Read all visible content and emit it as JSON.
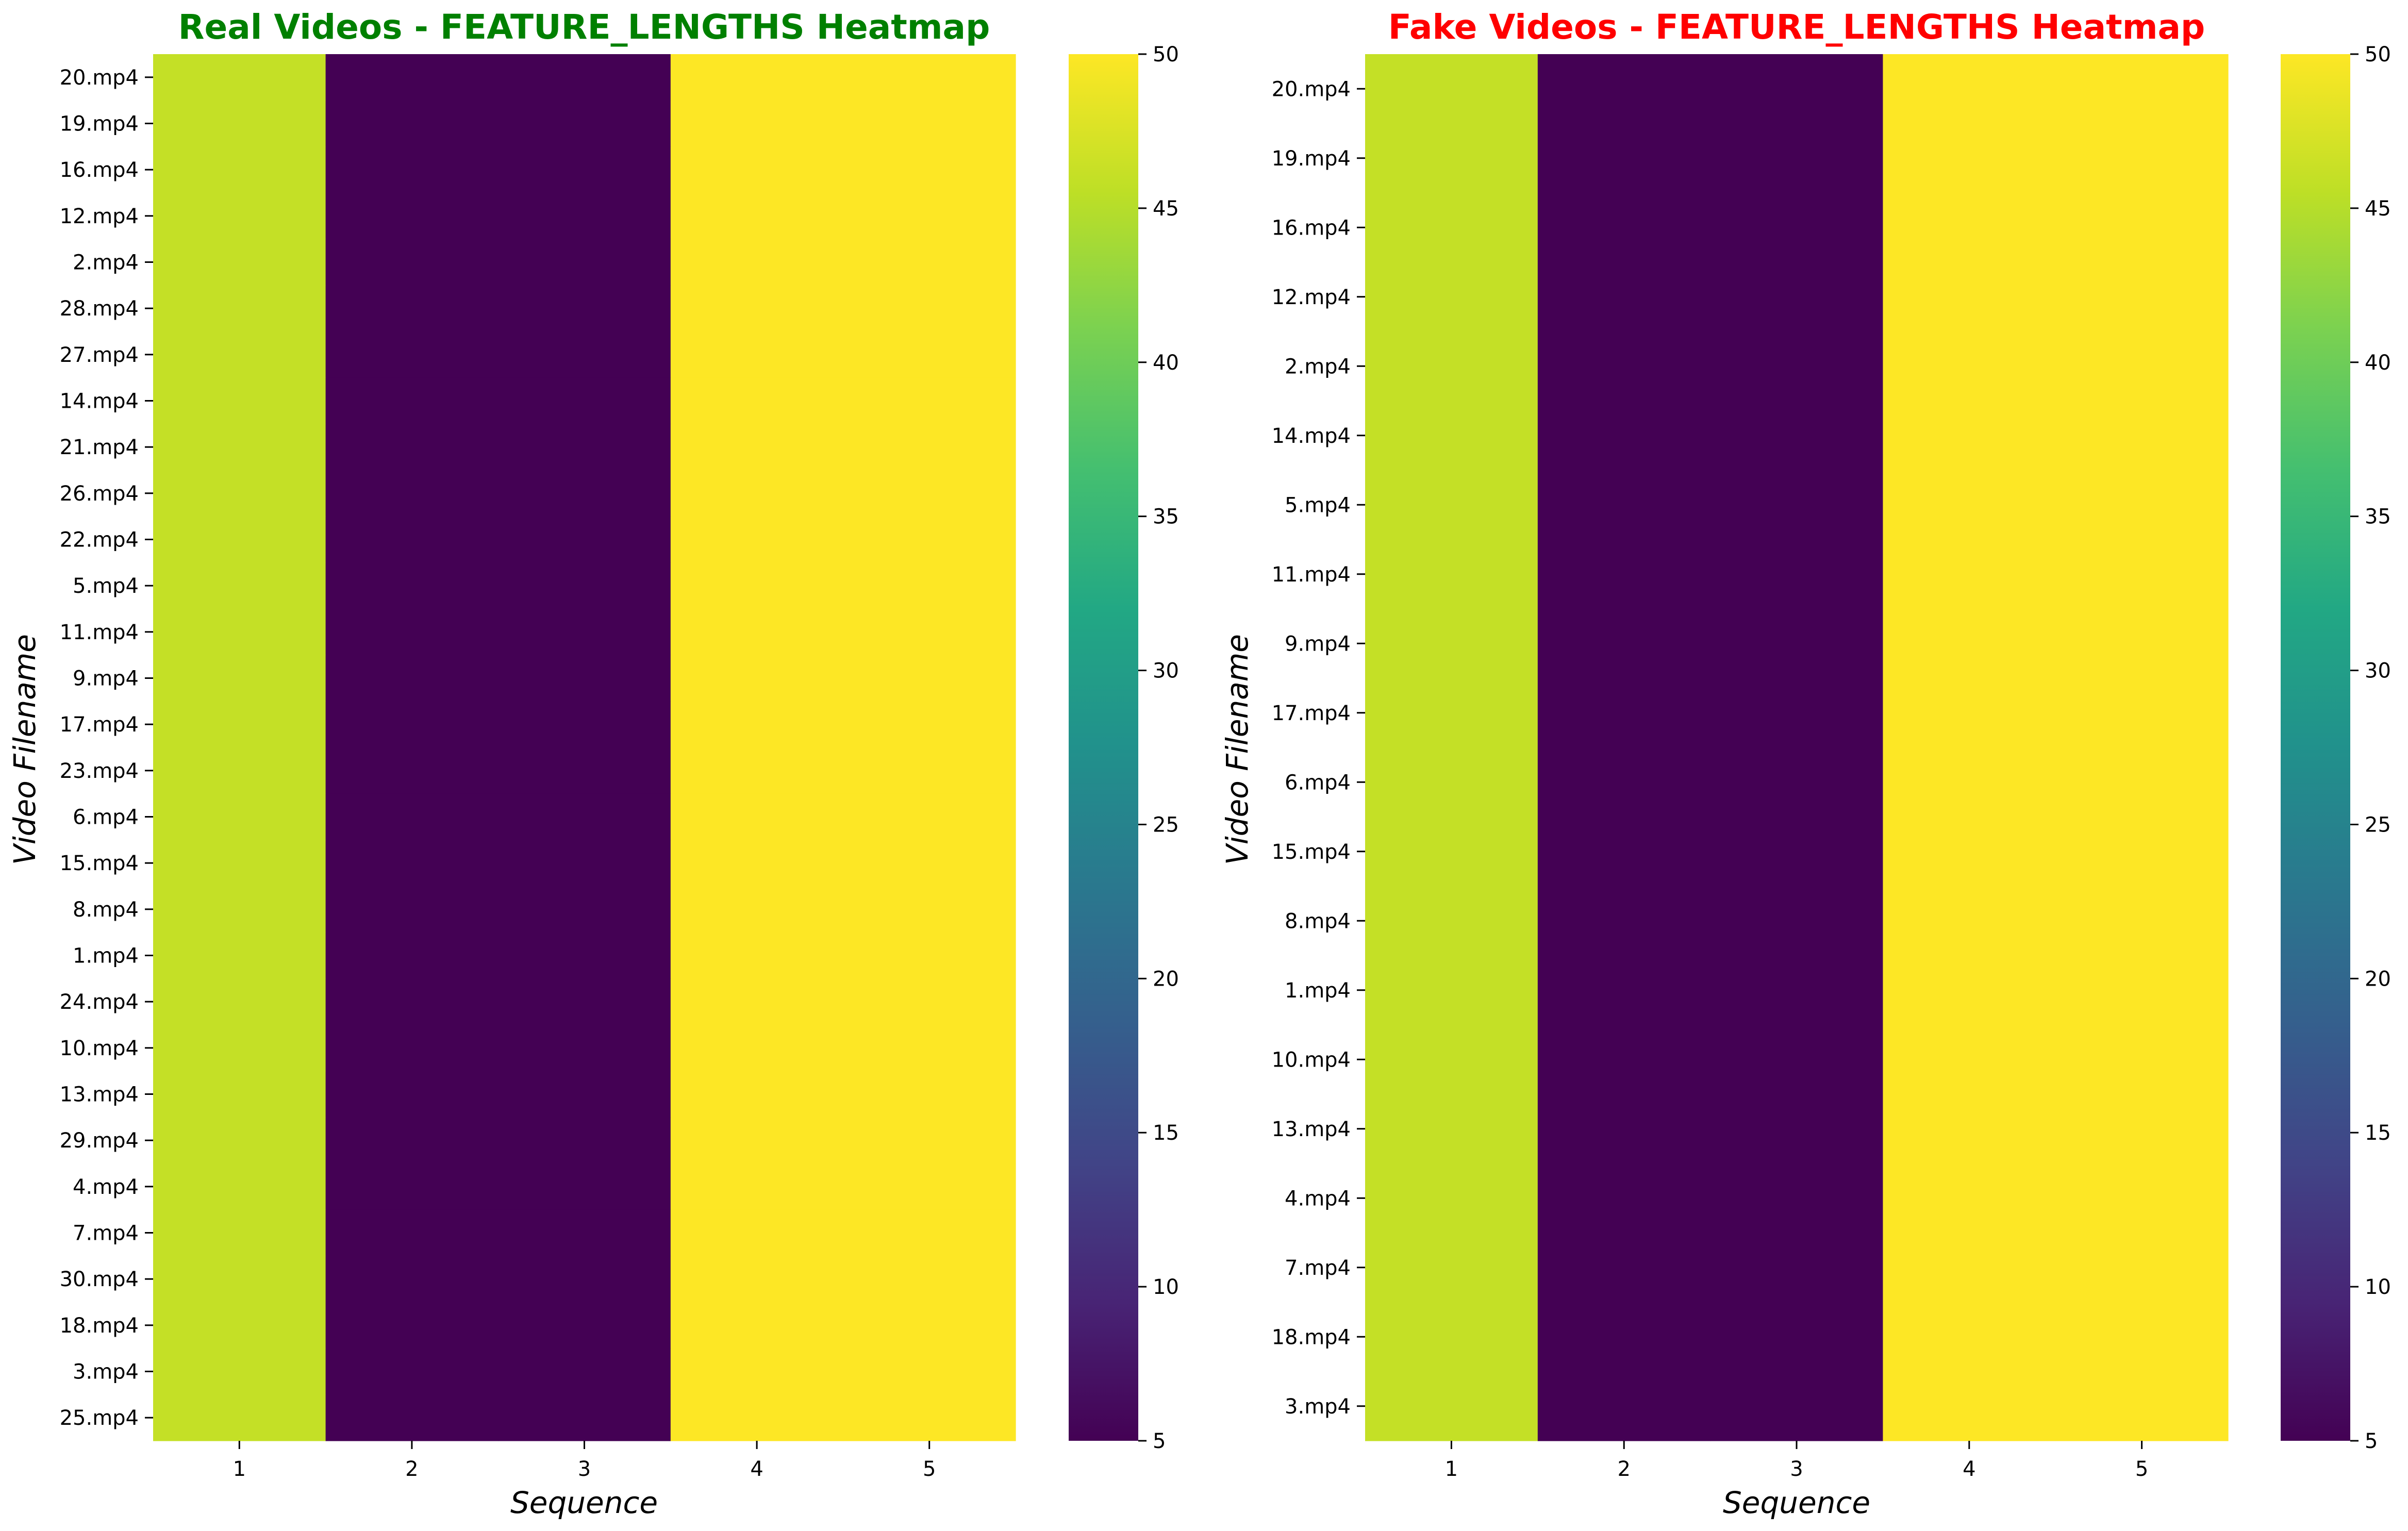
{
  "chart_data": [
    {
      "type": "heatmap",
      "title": "Real Videos - FEATURE_LENGTHS Heatmap",
      "title_color": "#008000",
      "xlabel": "Sequence",
      "ylabel": "Video Filename",
      "x": [
        "1",
        "2",
        "3",
        "4",
        "5"
      ],
      "y": [
        "20.mp4",
        "19.mp4",
        "16.mp4",
        "12.mp4",
        "2.mp4",
        "28.mp4",
        "27.mp4",
        "14.mp4",
        "21.mp4",
        "26.mp4",
        "22.mp4",
        "5.mp4",
        "11.mp4",
        "9.mp4",
        "17.mp4",
        "23.mp4",
        "6.mp4",
        "15.mp4",
        "8.mp4",
        "1.mp4",
        "24.mp4",
        "10.mp4",
        "13.mp4",
        "29.mp4",
        "4.mp4",
        "7.mp4",
        "30.mp4",
        "18.mp4",
        "3.mp4",
        "25.mp4"
      ],
      "row_values": [
        46,
        5,
        5,
        50,
        50
      ],
      "value_note": "all rows share the same values per sequence column",
      "colorscale": "viridis",
      "color_range": [
        5,
        50
      ],
      "colorbar_ticks": [
        5,
        10,
        15,
        20,
        25,
        30,
        35,
        40,
        45,
        50
      ]
    },
    {
      "type": "heatmap",
      "title": "Fake Videos - FEATURE_LENGTHS Heatmap",
      "title_color": "#ff0000",
      "xlabel": "Sequence",
      "ylabel": "Video Filename",
      "x": [
        "1",
        "2",
        "3",
        "4",
        "5"
      ],
      "y": [
        "20.mp4",
        "19.mp4",
        "16.mp4",
        "12.mp4",
        "2.mp4",
        "14.mp4",
        "5.mp4",
        "11.mp4",
        "9.mp4",
        "17.mp4",
        "6.mp4",
        "15.mp4",
        "8.mp4",
        "1.mp4",
        "10.mp4",
        "13.mp4",
        "4.mp4",
        "7.mp4",
        "18.mp4",
        "3.mp4"
      ],
      "row_values": [
        46,
        5,
        5,
        50,
        50
      ],
      "value_note": "all rows share the same values per sequence column",
      "colorscale": "viridis",
      "color_range": [
        5,
        50
      ],
      "colorbar_ticks": [
        5,
        10,
        15,
        20,
        25,
        30,
        35,
        40,
        45,
        50
      ]
    }
  ]
}
